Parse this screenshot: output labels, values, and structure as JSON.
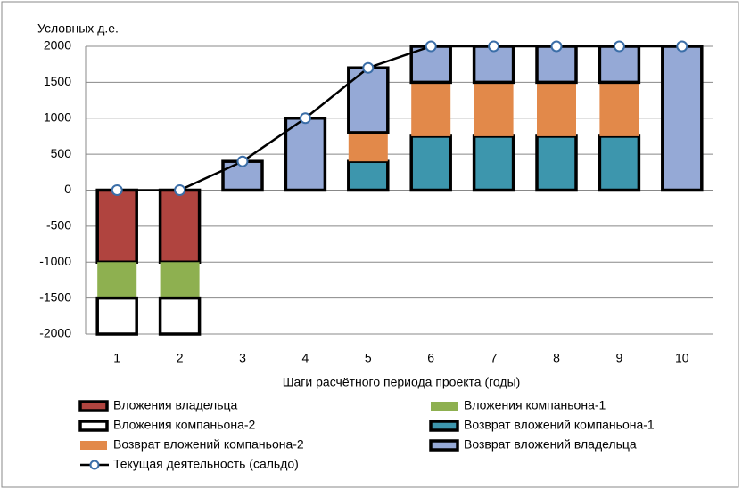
{
  "chart_data": {
    "type": "bar",
    "stacked": true,
    "y_label": "Условных д.е.",
    "x_label": "Шаги расчётного периода проекта (годы)",
    "categories": [
      "1",
      "2",
      "3",
      "4",
      "5",
      "6",
      "7",
      "8",
      "9",
      "10"
    ],
    "ylim": [
      -2000,
      2000
    ],
    "yticks": [
      -2000,
      -1500,
      -1000,
      -500,
      0,
      500,
      1000,
      1500,
      2000
    ],
    "grid": true,
    "series": [
      {
        "name": "Вложения владельца",
        "color": "#b0443f",
        "stroke": "#000000",
        "values": [
          -1000,
          -1000,
          null,
          null,
          null,
          null,
          null,
          null,
          null,
          null
        ]
      },
      {
        "name": "Вложения компаньона-1",
        "color": "#8eb050",
        "values": [
          -500,
          -500,
          null,
          null,
          null,
          null,
          null,
          null,
          null,
          null
        ]
      },
      {
        "name": "Вложения компаньона-2",
        "color": "#ffffff",
        "stroke": "#000000",
        "values": [
          -500,
          -500,
          null,
          null,
          null,
          null,
          null,
          null,
          null,
          null
        ]
      },
      {
        "name": "Возврат вложений компаньона-1",
        "color": "#3d96ad",
        "stroke": "#000000",
        "values": [
          null,
          null,
          null,
          null,
          400,
          750,
          750,
          750,
          750,
          null
        ]
      },
      {
        "name": "Возврат вложений компаньона-2",
        "color": "#e2894a",
        "values": [
          null,
          null,
          null,
          null,
          400,
          750,
          750,
          750,
          750,
          null
        ]
      },
      {
        "name": "Возврат вложений владельца",
        "color": "#95a9d6",
        "stroke": "#000000",
        "values": [
          null,
          null,
          400,
          1000,
          900,
          500,
          500,
          500,
          500,
          2000
        ]
      },
      {
        "name": "Текущая деятельность (сальдо)",
        "type": "line",
        "color": "#000000",
        "marker_color": "#3b6ea8",
        "values": [
          0,
          0,
          400,
          1000,
          1700,
          2000,
          2000,
          2000,
          2000,
          2000
        ]
      }
    ]
  }
}
